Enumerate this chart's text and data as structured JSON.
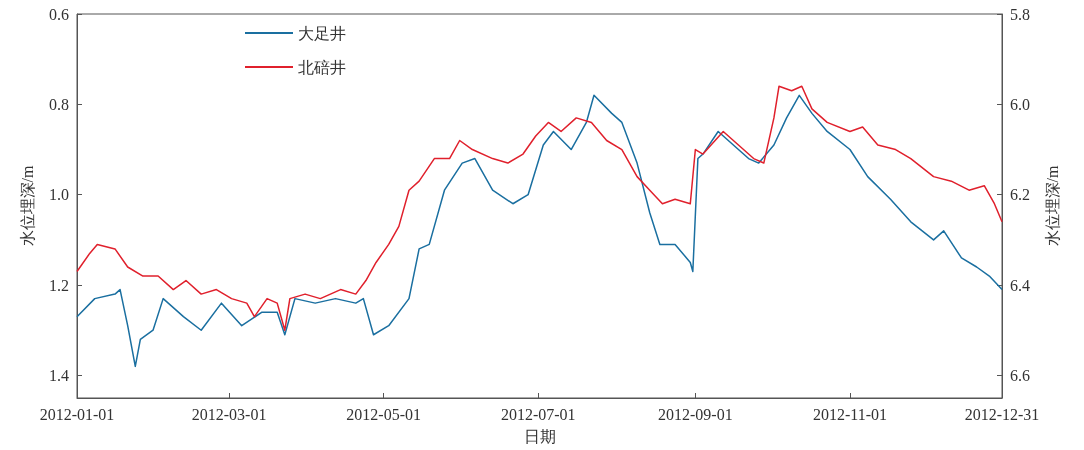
{
  "chart_data": {
    "type": "line",
    "xlabel": "日期",
    "ylabel": "水位埋深/m",
    "y2label": "水位埋深/m",
    "xlim": [
      "2012-01-01",
      "2012-12-31"
    ],
    "xticks": [
      "2012-01-01",
      "2012-03-01",
      "2012-05-01",
      "2012-07-01",
      "2012-09-01",
      "2012-11-01",
      "2012-12-31"
    ],
    "ylim": [
      1.45,
      0.6
    ],
    "yticks": [
      0.6,
      0.8,
      {
        "value": 1,
        "label": "1.0"
      },
      1.2,
      1.4
    ],
    "y2lim": [
      6.65,
      5.8
    ],
    "y2ticks": [
      5.8,
      {
        "value": 6,
        "label": "6.0"
      },
      6.2,
      6.4,
      6.6
    ],
    "grid": false,
    "legend": "top left",
    "marker": "none",
    "line_style": "solid",
    "series": [
      {
        "name": "大足井",
        "color": "#1a6fa0",
        "x": [
          "2012-01-01",
          "2012-01-08",
          "2012-01-16",
          "2012-01-18",
          "2012-01-21",
          "2012-01-24",
          "2012-01-26",
          "2012-01-31",
          "2012-02-04",
          "2012-02-12",
          "2012-02-19",
          "2012-02-27",
          "2012-03-06",
          "2012-03-14",
          "2012-03-20",
          "2012-03-23",
          "2012-03-27",
          "2012-04-04",
          "2012-04-12",
          "2012-04-20",
          "2012-04-23",
          "2012-04-27",
          "2012-05-03",
          "2012-05-11",
          "2012-05-15",
          "2012-05-19",
          "2012-05-25",
          "2012-06-01",
          "2012-06-06",
          "2012-06-13",
          "2012-06-21",
          "2012-06-27",
          "2012-07-03",
          "2012-07-07",
          "2012-07-14",
          "2012-07-20",
          "2012-07-23",
          "2012-07-30",
          "2012-08-03",
          "2012-08-09",
          "2012-08-14",
          "2012-08-18",
          "2012-08-24",
          "2012-08-30",
          "2012-08-31",
          "2012-09-02",
          "2012-09-04",
          "2012-09-10",
          "2012-09-16",
          "2012-09-22",
          "2012-09-26",
          "2012-10-02",
          "2012-10-07",
          "2012-10-12",
          "2012-10-17",
          "2012-10-23",
          "2012-11-01",
          "2012-11-08",
          "2012-11-17",
          "2012-11-25",
          "2012-12-04",
          "2012-12-08",
          "2012-12-15",
          "2012-12-21",
          "2012-12-26",
          "2012-12-31"
        ],
        "values": [
          1.27,
          1.23,
          1.22,
          1.21,
          1.29,
          1.38,
          1.32,
          1.3,
          1.23,
          1.27,
          1.3,
          1.24,
          1.29,
          1.26,
          1.26,
          1.31,
          1.23,
          1.24,
          1.23,
          1.24,
          1.23,
          1.31,
          1.29,
          1.23,
          1.12,
          1.11,
          0.99,
          0.93,
          0.92,
          0.99,
          1.02,
          1.0,
          0.89,
          0.86,
          0.9,
          0.84,
          0.78,
          0.82,
          0.84,
          0.93,
          1.04,
          1.11,
          1.11,
          1.15,
          1.17,
          0.92,
          0.91,
          0.86,
          0.89,
          0.92,
          0.93,
          0.89,
          0.83,
          0.78,
          0.82,
          0.86,
          0.9,
          0.96,
          1.01,
          1.06,
          1.1,
          1.08,
          1.14,
          1.16,
          1.18,
          1.21
        ]
      },
      {
        "name": "北碚井",
        "color": "#e0202c",
        "axis": "y2",
        "x": [
          "2012-01-01",
          "2012-01-06",
          "2012-01-09",
          "2012-01-16",
          "2012-01-21",
          "2012-01-27",
          "2012-02-02",
          "2012-02-08",
          "2012-02-13",
          "2012-02-19",
          "2012-02-25",
          "2012-03-02",
          "2012-03-08",
          "2012-03-11",
          "2012-03-16",
          "2012-03-20",
          "2012-03-23",
          "2012-03-25",
          "2012-03-31",
          "2012-04-06",
          "2012-04-14",
          "2012-04-20",
          "2012-04-24",
          "2012-04-28",
          "2012-05-03",
          "2012-05-07",
          "2012-05-11",
          "2012-05-15",
          "2012-05-21",
          "2012-05-27",
          "2012-05-31",
          "2012-06-05",
          "2012-06-13",
          "2012-06-19",
          "2012-06-25",
          "2012-06-30",
          "2012-07-05",
          "2012-07-10",
          "2012-07-16",
          "2012-07-22",
          "2012-07-28",
          "2012-08-03",
          "2012-08-09",
          "2012-08-14",
          "2012-08-19",
          "2012-08-24",
          "2012-08-30",
          "2012-09-01",
          "2012-09-04",
          "2012-09-12",
          "2012-09-18",
          "2012-09-24",
          "2012-09-28",
          "2012-10-02",
          "2012-10-04",
          "2012-10-09",
          "2012-10-13",
          "2012-10-17",
          "2012-10-23",
          "2012-11-01",
          "2012-11-06",
          "2012-11-12",
          "2012-11-19",
          "2012-11-25",
          "2012-12-04",
          "2012-12-11",
          "2012-12-18",
          "2012-12-24",
          "2012-12-28",
          "2012-12-31"
        ],
        "values": [
          6.37,
          6.33,
          6.31,
          6.32,
          6.36,
          6.38,
          6.38,
          6.41,
          6.39,
          6.42,
          6.41,
          6.43,
          6.44,
          6.47,
          6.43,
          6.44,
          6.5,
          6.43,
          6.42,
          6.43,
          6.41,
          6.42,
          6.39,
          6.35,
          6.31,
          6.27,
          6.19,
          6.17,
          6.12,
          6.12,
          6.08,
          6.1,
          6.12,
          6.13,
          6.11,
          6.07,
          6.04,
          6.06,
          6.03,
          6.04,
          6.08,
          6.1,
          6.16,
          6.19,
          6.22,
          6.21,
          6.22,
          6.1,
          6.11,
          6.06,
          6.09,
          6.12,
          6.13,
          6.03,
          5.96,
          5.97,
          5.96,
          6.01,
          6.04,
          6.06,
          6.05,
          6.09,
          6.1,
          6.12,
          6.16,
          6.17,
          6.19,
          6.18,
          6.22,
          6.26
        ]
      }
    ]
  }
}
